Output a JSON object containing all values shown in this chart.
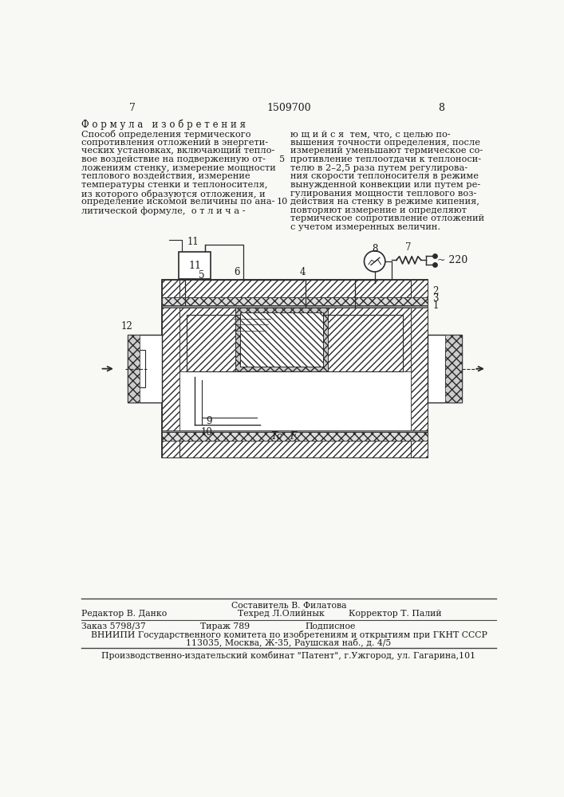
{
  "page_number_left": "7",
  "page_number_center": "1509700",
  "page_number_right": "8",
  "section_title": "Ф о р м у л а   и з о б р е т е н и я",
  "left_column_text": [
    "Способ определения термического",
    "сопротивления отложений в энергети-",
    "ческих установках, включающий тепло-",
    "вое воздействие на подверженную от-",
    "ложениям стенку, измерение мощности",
    "теплового воздействия, измерение",
    "температуры стенки и теплоносителя,",
    "из которого образуются отложения, и",
    "определение искомой величины по ана-",
    "литической формуле,  о т л и ч а -"
  ],
  "right_column_text": [
    "ю щ и й с я  тем, что, с целью по-",
    "вышения точности определения, после",
    "измерений уменьшают термическое со-",
    "противление теплоотдачи к теплоноси-",
    "телю в 2–2,5 раза путем регулирова-",
    "ния скорости теплоносителя в режиме",
    "вынужденной конвекции или путем ре-",
    "гулирования мощности теплового воз-",
    "действия на стенку в режиме кипения,",
    "повторяют измерение и определяют",
    "термическое сопротивление отложений",
    "с учетом измеренных величин."
  ],
  "footer_editor": "Редактор В. Данко",
  "footer_composer": "Составитель В. Филатова",
  "footer_techred": "Техред Л.Олийнык",
  "footer_corrector": "Корректор Т. Палий",
  "footer_order": "Заказ 5798/37",
  "footer_tirazh": "Тираж 789",
  "footer_podpisnoe": "Подписное",
  "footer_vniipи": "ВНИИПИ Государственного комитета по изобретениям и открытиям при ГКНТ СССР",
  "footer_address": "113035, Москва, Ж-35, Раушская наб., д. 4/5",
  "footer_proizv": "Производственно-издательский комбинат \"Патент\", г.Ужгород, ул. Гагарина,101",
  "bg_color": "#f8f8f4",
  "text_color": "#1a1a1a"
}
